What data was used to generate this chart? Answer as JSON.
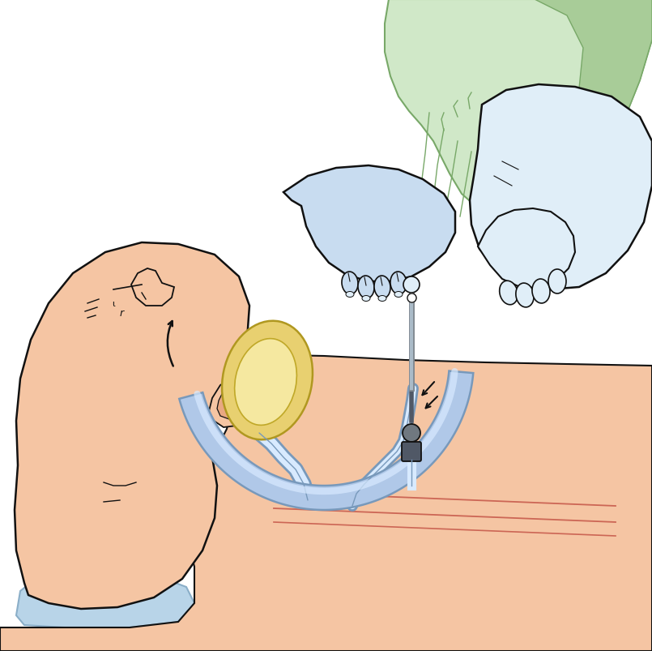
{
  "figsize": [
    8.05,
    8.04
  ],
  "dpi": 100,
  "bg_color": "#ffffff",
  "skin_color": "#F5C5A3",
  "skin_shadow": "#E8A882",
  "pillow_color": "#B8D4E8",
  "pillow_dark": "#8AAEC8",
  "glove_color": "#C8DCF0",
  "glove_light": "#E0EEF8",
  "glove_dark": "#A0BCD8",
  "tube_color": "#B0C8E8",
  "tube_light": "#D8EAFF",
  "tube_dark": "#7899BB",
  "mask_yellow": "#E8D070",
  "mask_light": "#F5E8A0",
  "green_drape": "#A8CC98",
  "green_light": "#D0E8C8",
  "green_dark": "#78A868",
  "line_color": "#111111",
  "red_line": "#CC6655"
}
